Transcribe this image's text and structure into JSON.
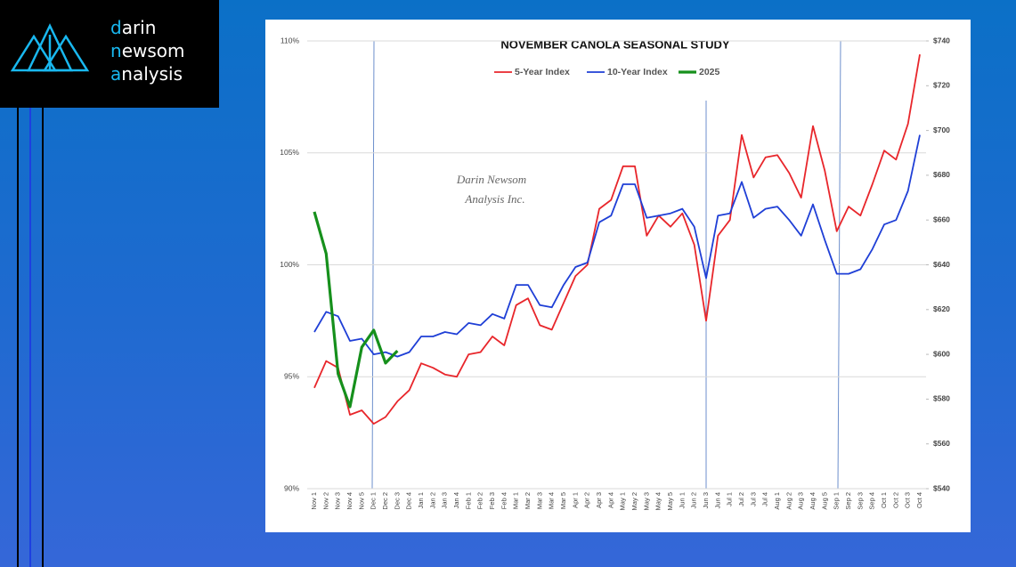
{
  "logo": {
    "lines": [
      "darin",
      "newsom",
      "analysis"
    ]
  },
  "chart_data": {
    "type": "line",
    "title": "NOVEMBER CANOLA SEASONAL STUDY",
    "annotation": [
      "Darin Newsom",
      "Analysis Inc."
    ],
    "categories": [
      "Nov 1",
      "Nov 2",
      "Nov 3",
      "Nov 4",
      "Nov 5",
      "Dec 1",
      "Dec 2",
      "Dec 3",
      "Dec 4",
      "Jan 1",
      "Jan 2",
      "Jan 3",
      "Jan 4",
      "Feb 1",
      "Feb 2",
      "Feb 3",
      "Feb 4",
      "Mar 1",
      "Mar 2",
      "Mar 3",
      "Mar 4",
      "Mar 5",
      "Apr 1",
      "Apr 2",
      "Apr 3",
      "Apr 4",
      "May 1",
      "May 2",
      "May 3",
      "May 4",
      "May 5",
      "Jun 1",
      "Jun 2",
      "Jun 3",
      "Jun 4",
      "Jul 1",
      "Jul 2",
      "Jul 3",
      "Jul 4",
      "Aug 1",
      "Aug 2",
      "Aug 3",
      "Aug 4",
      "Aug 5",
      "Sep 1",
      "Sep 2",
      "Sep 3",
      "Sep 4",
      "Oct 1",
      "Oct 2",
      "Oct 3",
      "Oct 4"
    ],
    "series": [
      {
        "name": "5-Year Index",
        "color": "#e8262b",
        "values": [
          94.5,
          95.7,
          95.4,
          93.3,
          93.5,
          92.9,
          93.2,
          93.9,
          94.4,
          95.6,
          95.4,
          95.1,
          95.0,
          96.0,
          96.1,
          96.8,
          96.4,
          98.2,
          98.5,
          97.3,
          97.1,
          98.3,
          99.5,
          100.0,
          102.5,
          102.9,
          104.4,
          104.4,
          101.3,
          102.2,
          101.7,
          102.3,
          100.9,
          97.5,
          101.3,
          102.0,
          105.8,
          103.9,
          104.8,
          104.9,
          104.1,
          103.0,
          106.2,
          104.2,
          101.5,
          102.6,
          102.2,
          103.6,
          105.1,
          104.7,
          106.3,
          109.4
        ]
      },
      {
        "name": "10-Year Index",
        "color": "#1f3fd6",
        "values": [
          97.0,
          97.9,
          97.7,
          96.6,
          96.7,
          96.0,
          96.1,
          95.9,
          96.1,
          96.8,
          96.8,
          97.0,
          96.9,
          97.4,
          97.3,
          97.8,
          97.6,
          99.1,
          99.1,
          98.2,
          98.1,
          99.1,
          99.9,
          100.1,
          101.9,
          102.2,
          103.6,
          103.6,
          102.1,
          102.2,
          102.3,
          102.5,
          101.7,
          99.4,
          102.2,
          102.3,
          103.7,
          102.1,
          102.5,
          102.6,
          102.0,
          101.3,
          102.7,
          101.1,
          99.6,
          99.6,
          99.8,
          100.7,
          101.8,
          102.0,
          103.3,
          105.8
        ]
      },
      {
        "name": "2025",
        "color": "#16901c",
        "axis": "y2",
        "values": [
          663.7,
          645.0,
          591.3,
          576.6,
          603.2,
          610.8,
          596.1,
          601.6,
          null,
          null,
          null,
          null,
          null,
          null,
          null,
          null,
          null,
          null,
          null,
          null,
          null,
          null,
          null,
          null,
          null,
          null,
          null,
          null,
          null,
          null,
          null,
          null,
          null,
          null,
          null,
          null,
          null,
          null,
          null,
          null,
          null,
          null,
          null,
          null,
          null,
          null,
          null,
          null,
          null,
          null,
          null,
          null
        ]
      }
    ],
    "ylim": [
      90,
      110
    ],
    "yticks": [
      {
        "value": 90,
        "label": "90%"
      },
      {
        "value": 95,
        "label": "95%"
      },
      {
        "value": 100,
        "label": "100%"
      },
      {
        "value": 105,
        "label": "105%"
      },
      {
        "value": 110,
        "label": "110%"
      }
    ],
    "y2lim": [
      540,
      740
    ],
    "y2ticks": [
      {
        "value": 540,
        "label": "$540"
      },
      {
        "value": 560,
        "label": "$560"
      },
      {
        "value": 580,
        "label": "$580"
      },
      {
        "value": 600,
        "label": "$600"
      },
      {
        "value": 620,
        "label": "$620"
      },
      {
        "value": 640,
        "label": "$640"
      },
      {
        "value": 660,
        "label": "$660"
      },
      {
        "value": 680,
        "label": "$680"
      },
      {
        "value": 700,
        "label": "$700"
      },
      {
        "value": 720,
        "label": "$720"
      },
      {
        "value": 740,
        "label": "$740"
      }
    ],
    "grid": true
  }
}
